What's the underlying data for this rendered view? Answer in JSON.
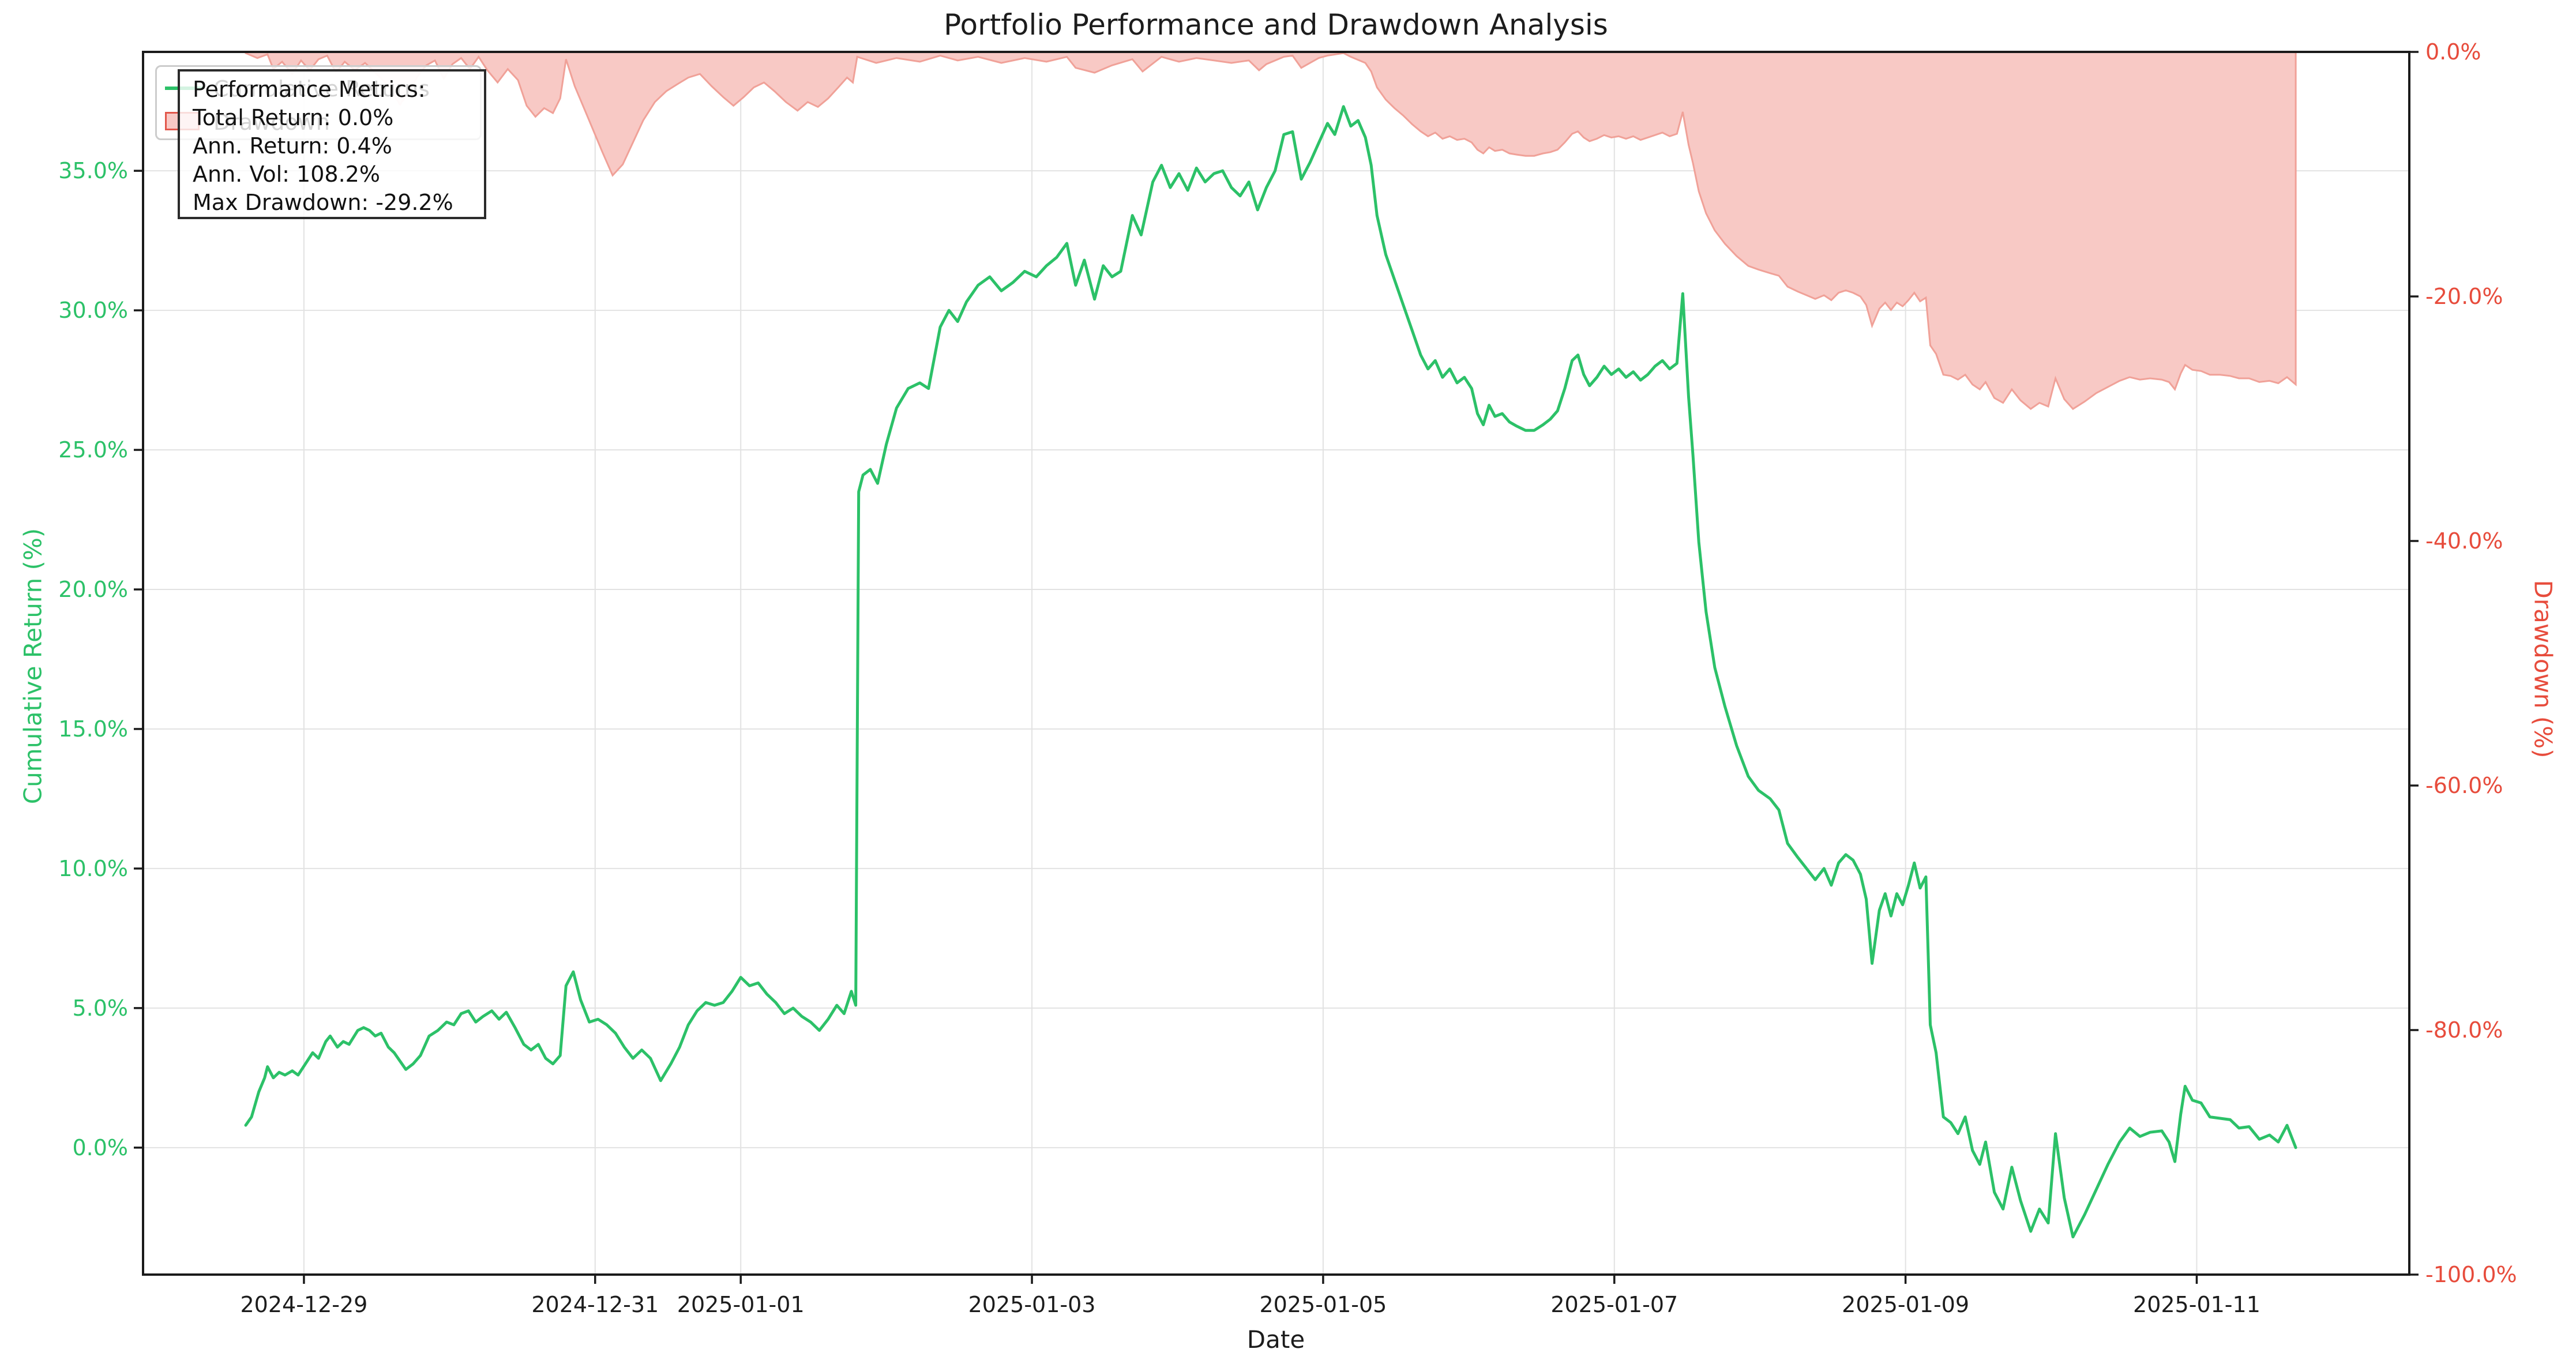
{
  "title": "Portfolio Performance and Drawdown Analysis",
  "axes": {
    "x": {
      "label": "Date",
      "domain_t": [
        -1.105,
        14.46
      ],
      "ticks": [
        {
          "t": 0,
          "label": "2024-12-29"
        },
        {
          "t": 2,
          "label": "2024-12-31"
        },
        {
          "t": 3,
          "label": "2025-01-01"
        },
        {
          "t": 5,
          "label": "2025-01-03"
        },
        {
          "t": 7,
          "label": "2025-01-05"
        },
        {
          "t": 9,
          "label": "2025-01-07"
        },
        {
          "t": 11,
          "label": "2025-01-09"
        },
        {
          "t": 13,
          "label": "2025-01-11"
        }
      ]
    },
    "y_left": {
      "label": "Cumulative Return (%)",
      "color": "#2cc168",
      "domain": [
        -4.55,
        39.26
      ],
      "ticks": [
        {
          "value": 0,
          "label": "0.0%"
        },
        {
          "value": 5,
          "label": "5.0%"
        },
        {
          "value": 10,
          "label": "10.0%"
        },
        {
          "value": 15,
          "label": "15.0%"
        },
        {
          "value": 20,
          "label": "20.0%"
        },
        {
          "value": 25,
          "label": "25.0%"
        },
        {
          "value": 30,
          "label": "30.0%"
        },
        {
          "value": 35,
          "label": "35.0%"
        }
      ]
    },
    "y_right": {
      "label": "Drawdown (%)",
      "color": "#e74c3c",
      "domain": [
        -100,
        0
      ],
      "ticks": [
        {
          "value": 0,
          "label": "0.0%"
        },
        {
          "value": -20,
          "label": "-20.0%"
        },
        {
          "value": -40,
          "label": "-40.0%"
        },
        {
          "value": -60,
          "label": "-60.0%"
        },
        {
          "value": -80,
          "label": "-80.0%"
        },
        {
          "value": -100,
          "label": "-100.0%"
        }
      ]
    },
    "grid_color": "#e2e2e2",
    "spine_color": "#1a1a1a"
  },
  "legend": {
    "items": [
      {
        "label": "Cumulative Returns",
        "swatch": "line"
      },
      {
        "label": "Drawdown",
        "swatch": "patch"
      }
    ]
  },
  "metrics_box": {
    "lines": [
      "Performance Metrics:",
      "Total Return: 0.0%",
      "Ann. Return: 0.4%",
      "Ann. Vol: 108.2%",
      "Max Drawdown: -29.2%"
    ]
  },
  "chart_data": {
    "type": "line",
    "x_unit": "days since 2024-12-29 00:00",
    "grid": true,
    "legend_position": "upper left",
    "series": [
      {
        "name": "Cumulative Returns",
        "axis": "left",
        "color": "#2cc168",
        "line_width": 5,
        "x": [
          -0.4,
          -0.36,
          -0.31,
          -0.27,
          -0.25,
          -0.21,
          -0.17,
          -0.13,
          -0.08,
          -0.04,
          0.01,
          0.06,
          0.1,
          0.15,
          0.18,
          0.23,
          0.27,
          0.31,
          0.37,
          0.41,
          0.45,
          0.49,
          0.53,
          0.58,
          0.62,
          0.66,
          0.7,
          0.75,
          0.8,
          0.86,
          0.92,
          0.98,
          1.03,
          1.08,
          1.13,
          1.18,
          1.23,
          1.29,
          1.34,
          1.39,
          1.45,
          1.51,
          1.56,
          1.61,
          1.66,
          1.71,
          1.76,
          1.8,
          1.85,
          1.9,
          1.96,
          2.02,
          2.08,
          2.14,
          2.2,
          2.26,
          2.32,
          2.38,
          2.45,
          2.52,
          2.58,
          2.64,
          2.7,
          2.76,
          2.82,
          2.88,
          2.94,
          3.0,
          3.06,
          3.12,
          3.18,
          3.24,
          3.3,
          3.36,
          3.42,
          3.48,
          3.54,
          3.6,
          3.66,
          3.71,
          3.76,
          3.79,
          3.81,
          3.84,
          3.89,
          3.94,
          4.0,
          4.07,
          4.15,
          4.23,
          4.29,
          4.37,
          4.43,
          4.49,
          4.55,
          4.63,
          4.71,
          4.79,
          4.87,
          4.95,
          5.03,
          5.1,
          5.17,
          5.24,
          5.3,
          5.36,
          5.43,
          5.49,
          5.55,
          5.61,
          5.69,
          5.75,
          5.83,
          5.89,
          5.95,
          6.01,
          6.07,
          6.13,
          6.19,
          6.25,
          6.31,
          6.37,
          6.43,
          6.49,
          6.55,
          6.61,
          6.67,
          6.73,
          6.79,
          6.85,
          6.91,
          6.97,
          7.03,
          7.08,
          7.14,
          7.19,
          7.24,
          7.29,
          7.33,
          7.37,
          7.43,
          7.49,
          7.55,
          7.61,
          7.67,
          7.72,
          7.77,
          7.82,
          7.87,
          7.92,
          7.97,
          8.02,
          8.06,
          8.1,
          8.14,
          8.18,
          8.23,
          8.28,
          8.33,
          8.39,
          8.45,
          8.51,
          8.56,
          8.61,
          8.66,
          8.71,
          8.75,
          8.79,
          8.83,
          8.88,
          8.93,
          8.98,
          9.03,
          9.08,
          9.13,
          9.18,
          9.23,
          9.28,
          9.33,
          9.38,
          9.43,
          9.47,
          9.51,
          9.54,
          9.58,
          9.63,
          9.69,
          9.76,
          9.84,
          9.92,
          9.99,
          10.07,
          10.13,
          10.19,
          10.26,
          10.32,
          10.38,
          10.44,
          10.49,
          10.54,
          10.59,
          10.64,
          10.69,
          10.73,
          10.77,
          10.82,
          10.86,
          10.9,
          10.94,
          10.98,
          11.02,
          11.06,
          11.1,
          11.14,
          11.17,
          11.21,
          11.26,
          11.31,
          11.36,
          11.41,
          11.46,
          11.51,
          11.55,
          11.61,
          11.67,
          11.73,
          11.79,
          11.86,
          11.92,
          11.98,
          12.03,
          12.09,
          12.15,
          12.23,
          12.31,
          12.39,
          12.47,
          12.54,
          12.61,
          12.68,
          12.76,
          12.81,
          12.85,
          12.89,
          12.92,
          12.97,
          13.03,
          13.09,
          13.16,
          13.23,
          13.29,
          13.36,
          13.43,
          13.5,
          13.56,
          13.62,
          13.68
        ],
        "y": [
          0.8,
          1.1,
          2.0,
          2.5,
          2.9,
          2.5,
          2.7,
          2.6,
          2.75,
          2.6,
          3.0,
          3.4,
          3.2,
          3.8,
          4.0,
          3.6,
          3.8,
          3.7,
          4.2,
          4.3,
          4.2,
          4.0,
          4.1,
          3.6,
          3.4,
          3.1,
          2.8,
          3.0,
          3.3,
          4.0,
          4.2,
          4.5,
          4.4,
          4.8,
          4.9,
          4.5,
          4.7,
          4.9,
          4.6,
          4.85,
          4.3,
          3.7,
          3.5,
          3.7,
          3.2,
          3.0,
          3.3,
          5.8,
          6.3,
          5.3,
          4.5,
          4.6,
          4.4,
          4.1,
          3.6,
          3.2,
          3.5,
          3.2,
          2.4,
          3.0,
          3.6,
          4.4,
          4.9,
          5.2,
          5.1,
          5.2,
          5.6,
          6.1,
          5.8,
          5.9,
          5.5,
          5.2,
          4.8,
          5.0,
          4.7,
          4.5,
          4.2,
          4.6,
          5.1,
          4.8,
          5.6,
          5.1,
          23.5,
          24.1,
          24.3,
          23.8,
          25.2,
          26.5,
          27.2,
          27.4,
          27.2,
          29.4,
          30.0,
          29.6,
          30.3,
          30.9,
          31.2,
          30.7,
          31.0,
          31.4,
          31.2,
          31.6,
          31.9,
          32.4,
          30.9,
          31.8,
          30.4,
          31.6,
          31.2,
          31.4,
          33.4,
          32.7,
          34.6,
          35.2,
          34.4,
          34.9,
          34.3,
          35.1,
          34.6,
          34.9,
          35.0,
          34.4,
          34.1,
          34.6,
          33.6,
          34.4,
          35.0,
          36.3,
          36.4,
          34.7,
          35.3,
          36.0,
          36.7,
          36.3,
          37.3,
          36.6,
          36.8,
          36.2,
          35.2,
          33.4,
          32.0,
          31.1,
          30.2,
          29.3,
          28.4,
          27.9,
          28.2,
          27.6,
          27.9,
          27.4,
          27.6,
          27.2,
          26.3,
          25.9,
          26.6,
          26.2,
          26.3,
          26.0,
          25.85,
          25.7,
          25.7,
          25.9,
          26.1,
          26.4,
          27.2,
          28.2,
          28.4,
          27.7,
          27.3,
          27.6,
          28.0,
          27.7,
          27.9,
          27.6,
          27.8,
          27.5,
          27.7,
          28.0,
          28.2,
          27.9,
          28.1,
          30.6,
          26.9,
          24.8,
          21.7,
          19.2,
          17.2,
          15.8,
          14.4,
          13.3,
          12.8,
          12.5,
          12.1,
          10.9,
          10.4,
          10.0,
          9.6,
          10.0,
          9.4,
          10.2,
          10.5,
          10.3,
          9.8,
          8.9,
          6.6,
          8.5,
          9.1,
          8.3,
          9.1,
          8.7,
          9.4,
          10.2,
          9.3,
          9.7,
          4.4,
          3.4,
          1.1,
          0.9,
          0.5,
          1.1,
          -0.1,
          -0.6,
          0.2,
          -1.6,
          -2.2,
          -0.7,
          -1.9,
          -3.0,
          -2.2,
          -2.7,
          0.5,
          -1.8,
          -3.2,
          -2.4,
          -1.5,
          -0.6,
          0.2,
          0.7,
          0.4,
          0.55,
          0.6,
          0.2,
          -0.5,
          1.2,
          2.2,
          1.7,
          1.6,
          1.1,
          1.05,
          1.0,
          0.7,
          0.75,
          0.3,
          0.45,
          0.2,
          0.8,
          0.0
        ]
      },
      {
        "name": "Drawdown",
        "axis": "right",
        "color": "#f0a198",
        "fill": true,
        "fill_color": "#f8c9c5",
        "x": [
          -0.4,
          -0.32,
          -0.25,
          -0.21,
          -0.15,
          -0.08,
          -0.02,
          0.04,
          0.1,
          0.16,
          0.22,
          0.28,
          0.35,
          0.42,
          0.49,
          0.55,
          0.6,
          0.66,
          0.72,
          0.78,
          0.84,
          0.9,
          0.96,
          1.02,
          1.08,
          1.14,
          1.2,
          1.26,
          1.33,
          1.4,
          1.47,
          1.53,
          1.59,
          1.65,
          1.71,
          1.76,
          1.8,
          1.86,
          1.92,
          1.98,
          2.05,
          2.12,
          2.19,
          2.26,
          2.33,
          2.41,
          2.49,
          2.57,
          2.64,
          2.72,
          2.8,
          2.88,
          2.95,
          3.02,
          3.09,
          3.16,
          3.23,
          3.31,
          3.39,
          3.46,
          3.53,
          3.6,
          3.67,
          3.73,
          3.77,
          3.8,
          3.93,
          4.07,
          4.23,
          4.37,
          4.49,
          4.63,
          4.79,
          4.95,
          5.1,
          5.24,
          5.3,
          5.43,
          5.55,
          5.69,
          5.76,
          5.89,
          6.01,
          6.13,
          6.25,
          6.37,
          6.49,
          6.56,
          6.61,
          6.73,
          6.79,
          6.85,
          6.91,
          6.97,
          7.03,
          7.14,
          7.19,
          7.29,
          7.33,
          7.37,
          7.43,
          7.49,
          7.55,
          7.61,
          7.67,
          7.72,
          7.77,
          7.82,
          7.87,
          7.92,
          7.97,
          8.02,
          8.06,
          8.1,
          8.14,
          8.18,
          8.23,
          8.28,
          8.33,
          8.39,
          8.45,
          8.51,
          8.56,
          8.61,
          8.66,
          8.71,
          8.75,
          8.79,
          8.83,
          8.88,
          8.93,
          8.98,
          9.03,
          9.08,
          9.13,
          9.18,
          9.23,
          9.28,
          9.33,
          9.38,
          9.43,
          9.47,
          9.51,
          9.54,
          9.58,
          9.63,
          9.69,
          9.76,
          9.84,
          9.92,
          9.99,
          10.07,
          10.13,
          10.19,
          10.26,
          10.32,
          10.38,
          10.44,
          10.49,
          10.54,
          10.59,
          10.64,
          10.69,
          10.73,
          10.77,
          10.82,
          10.86,
          10.9,
          10.94,
          10.98,
          11.02,
          11.06,
          11.1,
          11.14,
          11.17,
          11.21,
          11.26,
          11.31,
          11.36,
          11.41,
          11.46,
          11.51,
          11.55,
          11.61,
          11.67,
          11.73,
          11.79,
          11.86,
          11.92,
          11.98,
          12.03,
          12.09,
          12.15,
          12.23,
          12.31,
          12.39,
          12.47,
          12.54,
          12.61,
          12.68,
          12.76,
          12.81,
          12.85,
          12.89,
          12.92,
          12.97,
          13.03,
          13.09,
          13.16,
          13.23,
          13.29,
          13.36,
          13.43,
          13.5,
          13.56,
          13.62,
          13.68
        ],
        "y": [
          -0.1,
          -0.5,
          -0.2,
          -1.4,
          -0.8,
          -1.8,
          -0.7,
          -1.5,
          -0.6,
          -0.3,
          -1.7,
          -0.8,
          -1.5,
          -0.9,
          -1.7,
          -2.4,
          -3.2,
          -4.3,
          -3.3,
          -2.0,
          -1.1,
          -0.7,
          -2.2,
          -1.0,
          -0.5,
          -1.4,
          -0.4,
          -1.5,
          -2.5,
          -1.4,
          -2.3,
          -4.4,
          -5.3,
          -4.6,
          -5.0,
          -3.8,
          -0.6,
          -2.8,
          -4.5,
          -6.2,
          -8.2,
          -10.1,
          -9.2,
          -7.4,
          -5.6,
          -4.1,
          -3.2,
          -2.6,
          -2.1,
          -1.8,
          -2.8,
          -3.7,
          -4.4,
          -3.7,
          -2.9,
          -2.5,
          -3.2,
          -4.1,
          -4.8,
          -4.1,
          -4.5,
          -3.8,
          -2.9,
          -2.1,
          -2.5,
          -0.4,
          -0.9,
          -0.5,
          -0.8,
          -0.3,
          -0.7,
          -0.4,
          -0.9,
          -0.5,
          -0.8,
          -0.4,
          -1.3,
          -1.7,
          -1.1,
          -0.6,
          -1.6,
          -0.4,
          -0.8,
          -0.5,
          -0.7,
          -0.9,
          -0.7,
          -1.5,
          -1.0,
          -0.4,
          -0.3,
          -1.3,
          -0.9,
          -0.5,
          -0.3,
          -0.1,
          -0.4,
          -0.9,
          -1.6,
          -2.9,
          -3.9,
          -4.6,
          -5.2,
          -5.9,
          -6.5,
          -6.9,
          -6.6,
          -7.1,
          -6.9,
          -7.2,
          -7.1,
          -7.4,
          -8.0,
          -8.3,
          -7.8,
          -8.1,
          -8.0,
          -8.3,
          -8.4,
          -8.5,
          -8.5,
          -8.3,
          -8.2,
          -8.0,
          -7.4,
          -6.7,
          -6.5,
          -7.0,
          -7.3,
          -7.1,
          -6.8,
          -7.0,
          -6.9,
          -7.1,
          -6.9,
          -7.2,
          -7.0,
          -6.8,
          -6.6,
          -6.9,
          -6.7,
          -4.9,
          -7.6,
          -9.1,
          -11.4,
          -13.2,
          -14.6,
          -15.7,
          -16.7,
          -17.5,
          -17.8,
          -18.1,
          -18.3,
          -19.2,
          -19.6,
          -19.9,
          -20.2,
          -19.9,
          -20.3,
          -19.7,
          -19.5,
          -19.7,
          -20.0,
          -20.7,
          -22.4,
          -21.0,
          -20.5,
          -21.1,
          -20.5,
          -20.8,
          -20.3,
          -19.7,
          -20.4,
          -20.1,
          -24.0,
          -24.7,
          -26.4,
          -26.5,
          -26.8,
          -26.4,
          -27.2,
          -27.6,
          -27.0,
          -28.3,
          -28.7,
          -27.6,
          -28.5,
          -29.2,
          -28.7,
          -29.0,
          -26.7,
          -28.4,
          -29.2,
          -28.6,
          -27.9,
          -27.4,
          -26.9,
          -26.6,
          -26.8,
          -26.7,
          -26.8,
          -27.0,
          -27.6,
          -26.3,
          -25.6,
          -26.0,
          -26.1,
          -26.4,
          -26.4,
          -26.5,
          -26.7,
          -26.7,
          -27.0,
          -26.9,
          -27.1,
          -26.6,
          -27.2
        ]
      }
    ]
  }
}
